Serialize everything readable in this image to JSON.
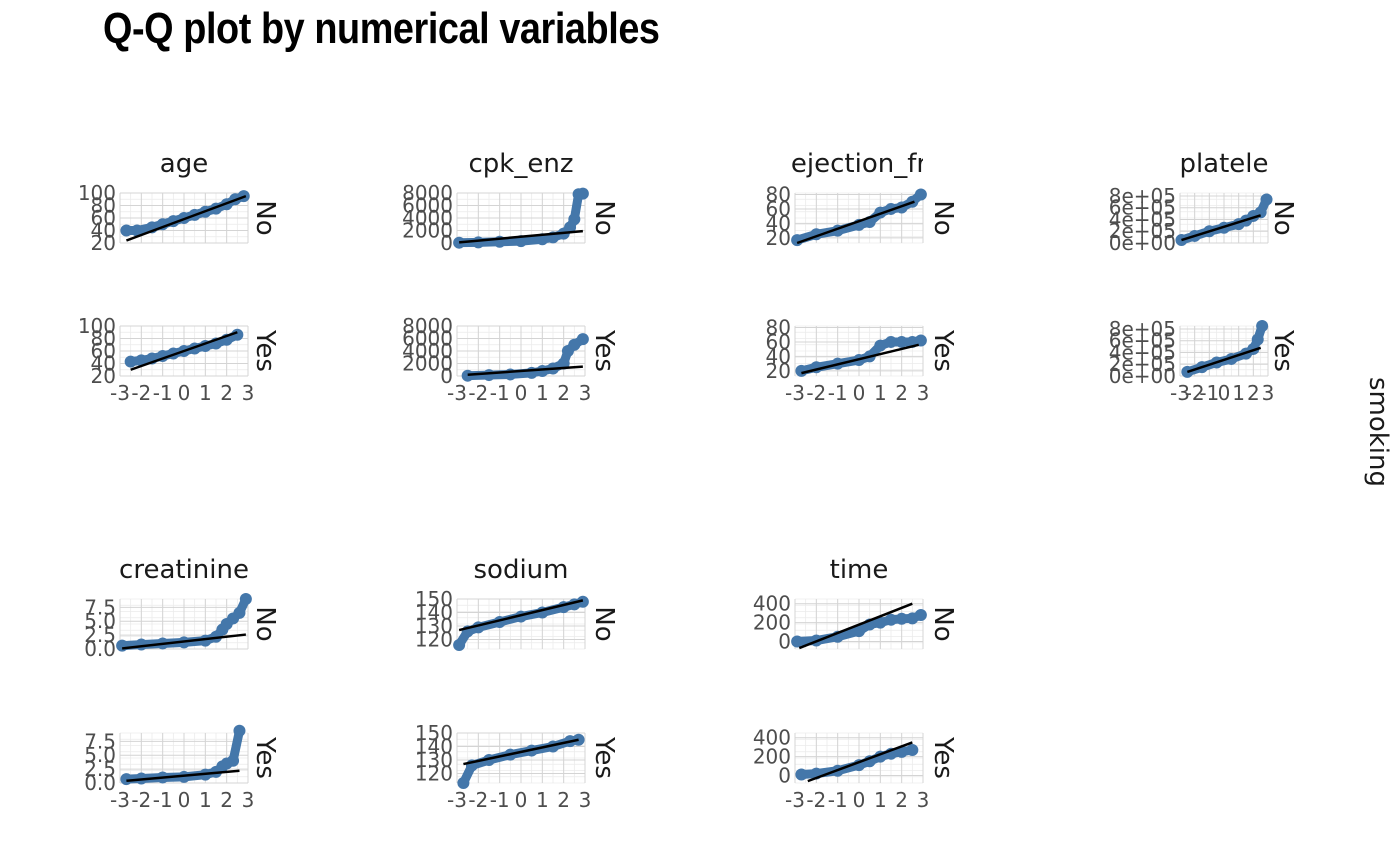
{
  "title": "Q-Q plot by numerical variables",
  "facet_label": "smoking",
  "colors": {
    "points": "#4477aa",
    "line": "#000000",
    "grid_major": "#d4d4d4",
    "grid_minor": "#ebebeb"
  },
  "chart_data": {
    "type": "scatter",
    "title": "Q-Q plot by numerical variables",
    "facet_variable": "smoking",
    "facet_levels": [
      "No",
      "Yes"
    ],
    "xticks": [
      "-3",
      "-2",
      "-1",
      "0",
      "1",
      "2",
      "3"
    ],
    "xlim": [
      -3,
      3
    ],
    "grid": true,
    "panels": [
      {
        "name": "age",
        "clip_label": "age",
        "yticks": [
          "20",
          "40",
          "60",
          "80",
          "100"
        ],
        "ylim": [
          20,
          100
        ],
        "facets": [
          {
            "level": "No",
            "points": [
              [
                -2.7,
                40
              ],
              [
                -2.2,
                40
              ],
              [
                -1.5,
                45
              ],
              [
                -1,
                50
              ],
              [
                -0.5,
                55
              ],
              [
                0,
                60
              ],
              [
                0.5,
                65
              ],
              [
                1,
                70
              ],
              [
                1.5,
                75
              ],
              [
                2,
                82
              ],
              [
                2.4,
                90
              ],
              [
                2.8,
                95
              ]
            ],
            "line": [
              [
                -2.7,
                24
              ],
              [
                2.9,
                95
              ]
            ]
          },
          {
            "level": "Yes",
            "points": [
              [
                -2.5,
                43
              ],
              [
                -2,
                45
              ],
              [
                -1.5,
                48
              ],
              [
                -1,
                52
              ],
              [
                -0.5,
                56
              ],
              [
                0,
                60
              ],
              [
                0.5,
                64
              ],
              [
                1,
                68
              ],
              [
                1.5,
                72
              ],
              [
                2,
                78
              ],
              [
                2.5,
                86
              ]
            ],
            "line": [
              [
                -2.5,
                30
              ],
              [
                2.5,
                90
              ]
            ]
          }
        ]
      },
      {
        "name": "cpk_enzyme",
        "clip_label": "cpk_enz",
        "yticks": [
          "0",
          "2000",
          "4000",
          "6000",
          "8000"
        ],
        "ylim": [
          0,
          8000
        ],
        "facets": [
          {
            "level": "No",
            "points": [
              [
                -2.9,
                50
              ],
              [
                -2,
                100
              ],
              [
                -1,
                200
              ],
              [
                0,
                300
              ],
              [
                1,
                600
              ],
              [
                1.5,
                900
              ],
              [
                2,
                1500
              ],
              [
                2.3,
                2500
              ],
              [
                2.5,
                3800
              ],
              [
                2.7,
                7800
              ],
              [
                2.9,
                7900
              ]
            ],
            "line": [
              [
                -2.9,
                100
              ],
              [
                2.9,
                1900
              ]
            ]
          },
          {
            "level": "Yes",
            "points": [
              [
                -2.5,
                50
              ],
              [
                -1.5,
                150
              ],
              [
                -0.5,
                250
              ],
              [
                0.5,
                500
              ],
              [
                1,
                800
              ],
              [
                1.5,
                1200
              ],
              [
                2,
                2000
              ],
              [
                2.2,
                4000
              ],
              [
                2.5,
                5000
              ],
              [
                2.9,
                5900
              ]
            ],
            "line": [
              [
                -2.5,
                200
              ],
              [
                2.9,
                1500
              ]
            ]
          }
        ]
      },
      {
        "name": "ejection_fraction",
        "clip_label": "ejection_fr",
        "yticks": [
          "20",
          "40",
          "60",
          "80"
        ],
        "ylim": [
          13,
          82
        ],
        "facets": [
          {
            "level": "No",
            "points": [
              [
                -2.9,
                17
              ],
              [
                -2,
                25
              ],
              [
                -1,
                30
              ],
              [
                0,
                38
              ],
              [
                0.5,
                42
              ],
              [
                1,
                55
              ],
              [
                1.5,
                60
              ],
              [
                2,
                62
              ],
              [
                2.5,
                70
              ],
              [
                2.9,
                80
              ]
            ],
            "line": [
              [
                -2.9,
                13
              ],
              [
                2.6,
                70
              ]
            ]
          },
          {
            "level": "Yes",
            "points": [
              [
                -2.7,
                20
              ],
              [
                -2,
                25
              ],
              [
                -1,
                30
              ],
              [
                0,
                35
              ],
              [
                0.5,
                40
              ],
              [
                1,
                55
              ],
              [
                1.5,
                60
              ],
              [
                2,
                60
              ],
              [
                2.5,
                60
              ],
              [
                2.9,
                62
              ]
            ],
            "line": [
              [
                -2.7,
                17
              ],
              [
                2.8,
                56
              ]
            ]
          }
        ]
      },
      {
        "name": "platelets",
        "clip_label": "platele",
        "yticks": [
          "0e+00",
          "2e+05",
          "4e+05",
          "6e+05",
          "8e+05"
        ],
        "ylim": [
          0,
          850000
        ],
        "facets": [
          {
            "level": "No",
            "points": [
              [
                -2.9,
                50000
              ],
              [
                -2,
                120000
              ],
              [
                -1,
                200000
              ],
              [
                0,
                260000
              ],
              [
                1,
                320000
              ],
              [
                1.5,
                380000
              ],
              [
                2,
                460000
              ],
              [
                2.5,
                520000
              ],
              [
                2.9,
                740000
              ]
            ],
            "line": [
              [
                -2.9,
                50000
              ],
              [
                2.5,
                470000
              ]
            ]
          },
          {
            "level": "Yes",
            "points": [
              [
                -2.5,
                70000
              ],
              [
                -1.5,
                150000
              ],
              [
                -0.5,
                230000
              ],
              [
                0.5,
                290000
              ],
              [
                1.5,
                380000
              ],
              [
                2,
                460000
              ],
              [
                2.3,
                620000
              ],
              [
                2.6,
                850000
              ]
            ],
            "line": [
              [
                -2.5,
                70000
              ],
              [
                2.5,
                480000
              ]
            ]
          }
        ]
      },
      {
        "name": "creatinine",
        "clip_label": "creatinine",
        "yticks": [
          "0.0",
          "2.5",
          "5.0",
          "7.5"
        ],
        "ylim": [
          0,
          9
        ],
        "facets": [
          {
            "level": "No",
            "points": [
              [
                -2.9,
                0.6
              ],
              [
                -2,
                0.8
              ],
              [
                -1,
                1
              ],
              [
                0,
                1.2
              ],
              [
                1,
                1.5
              ],
              [
                1.5,
                2.2
              ],
              [
                1.8,
                3.5
              ],
              [
                2,
                4.5
              ],
              [
                2.3,
                5.5
              ],
              [
                2.6,
                6.5
              ],
              [
                2.9,
                9
              ]
            ],
            "line": [
              [
                -2.9,
                0.1
              ],
              [
                2.9,
                2.6
              ]
            ]
          },
          {
            "level": "Yes",
            "points": [
              [
                -2.7,
                0.7
              ],
              [
                -2,
                0.8
              ],
              [
                -1,
                1
              ],
              [
                0,
                1.1
              ],
              [
                1,
                1.5
              ],
              [
                1.5,
                2
              ],
              [
                1.8,
                3
              ],
              [
                2,
                3.5
              ],
              [
                2.3,
                4
              ],
              [
                2.6,
                9.4
              ]
            ],
            "line": [
              [
                -2.7,
                0.4
              ],
              [
                2.6,
                2.2
              ]
            ]
          }
        ]
      },
      {
        "name": "sodium",
        "clip_label": "sodium",
        "yticks": [
          "120",
          "130",
          "140",
          "150"
        ],
        "ylim": [
          113,
          150
        ],
        "facets": [
          {
            "level": "No",
            "points": [
              [
                -2.9,
                116
              ],
              [
                -2.5,
                126
              ],
              [
                -2,
                129
              ],
              [
                -1,
                133
              ],
              [
                0,
                137
              ],
              [
                1,
                140
              ],
              [
                2,
                144
              ],
              [
                2.5,
                146
              ],
              [
                2.9,
                148
              ]
            ],
            "line": [
              [
                -2.9,
                127
              ],
              [
                2.9,
                149
              ]
            ]
          },
          {
            "level": "Yes",
            "points": [
              [
                -2.7,
                113
              ],
              [
                -2.3,
                126
              ],
              [
                -1.5,
                130
              ],
              [
                -0.5,
                134
              ],
              [
                0.5,
                137
              ],
              [
                1.5,
                140
              ],
              [
                2.3,
                144
              ],
              [
                2.7,
                145
              ]
            ],
            "line": [
              [
                -2.7,
                127
              ],
              [
                2.7,
                145
              ]
            ]
          }
        ]
      },
      {
        "name": "time",
        "clip_label": "time",
        "yticks": [
          "0",
          "200",
          "400"
        ],
        "ylim": [
          -80,
          450
        ],
        "facets": [
          {
            "level": "No",
            "points": [
              [
                -2.9,
                0
              ],
              [
                -2,
                10
              ],
              [
                -1,
                50
              ],
              [
                0,
                110
              ],
              [
                0.5,
                180
              ],
              [
                1,
                200
              ],
              [
                1.5,
                230
              ],
              [
                2,
                240
              ],
              [
                2.5,
                245
              ],
              [
                2.9,
                280
              ]
            ],
            "line": [
              [
                -2.8,
                -70
              ],
              [
                2.5,
                400
              ]
            ]
          },
          {
            "level": "Yes",
            "points": [
              [
                -2.7,
                10
              ],
              [
                -2,
                20
              ],
              [
                -1,
                50
              ],
              [
                0,
                110
              ],
              [
                0.5,
                150
              ],
              [
                1,
                200
              ],
              [
                1.5,
                230
              ],
              [
                2,
                250
              ],
              [
                2.5,
                270
              ]
            ],
            "line": [
              [
                -2.4,
                -60
              ],
              [
                2.5,
                350
              ]
            ]
          }
        ]
      }
    ]
  }
}
